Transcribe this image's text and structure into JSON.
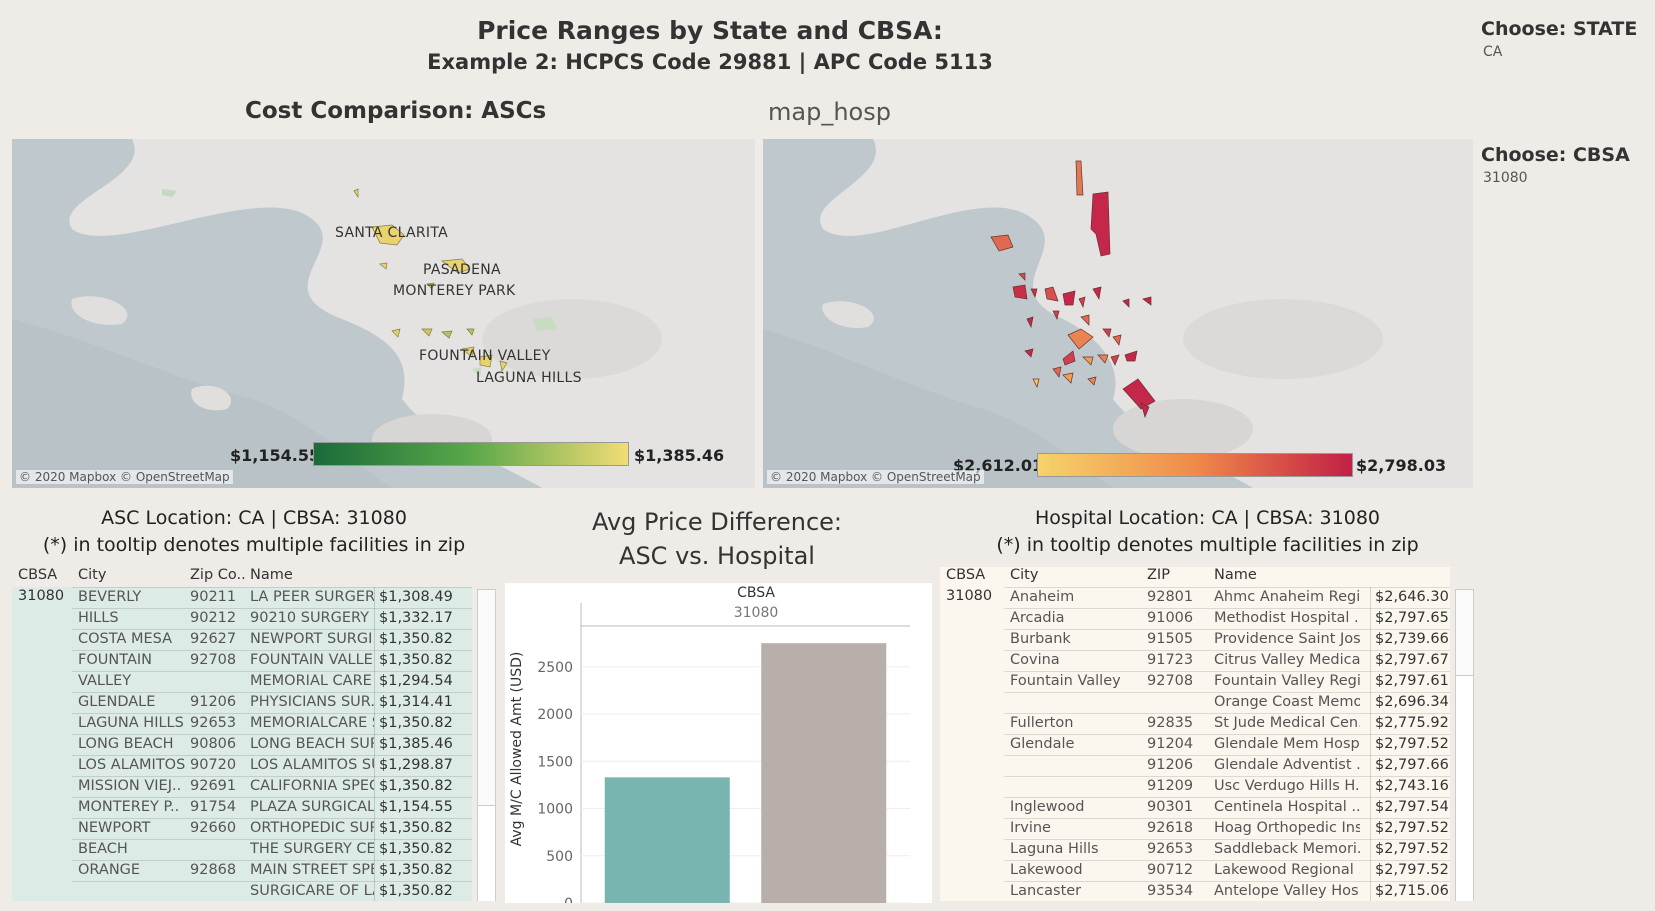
{
  "header": {
    "title": "Price Ranges by State and CBSA:",
    "subtitle": "Example 2: HCPCS Code 29881 | APC Code 5113"
  },
  "filters": {
    "state_label": "Choose:  STATE",
    "state_value": "CA",
    "cbsa_label": "Choose: CBSA",
    "cbsa_value": "31080"
  },
  "asc_map": {
    "title": "Cost Comparison:  ASCs",
    "labels": [
      "SANTA CLARITA",
      "PASADENA",
      "MONTEREY PARK",
      "FOUNTAIN VALLEY",
      "LAGUNA HILLS"
    ],
    "attribution": "© 2020 Mapbox © OpenStreetMap",
    "legend_min": "$1,154.55",
    "legend_max": "$1,385.46",
    "colors": [
      "#1a6b3a",
      "#5aa84a",
      "#f2dc75"
    ]
  },
  "hosp_map": {
    "title": "map_hosp",
    "attribution": "© 2020 Mapbox © OpenStreetMap",
    "legend_min": "$2,612.01",
    "legend_max": "$2,798.03",
    "colors": [
      "#f5d36a",
      "#f08a4a",
      "#c21f45"
    ]
  },
  "asc_table": {
    "title_line1": "ASC Location: CA | CBSA: 31080",
    "title_line2": "(*) in tooltip denotes multiple facilities in zip",
    "headers": [
      "CBSA",
      "City",
      "Zip Co..",
      "Name"
    ],
    "cbsa": "31080",
    "rows": [
      {
        "city": "BEVERLY",
        "zip": "90211",
        "name": "LA PEER SURGERY..",
        "price": "$1,308.49"
      },
      {
        "city": "HILLS",
        "zip": "90212",
        "name": "90210 SURGERY ..",
        "price": "$1,332.17"
      },
      {
        "city": "COSTA MESA",
        "zip": "92627",
        "name": "NEWPORT SURGI..",
        "price": "$1,350.82"
      },
      {
        "city": "FOUNTAIN",
        "zip": "92708",
        "name": "FOUNTAIN VALLE..",
        "price": "$1,350.82"
      },
      {
        "city": "VALLEY",
        "zip": "",
        "name": "MEMORIAL CARE ..",
        "price": "$1,294.54"
      },
      {
        "city": "GLENDALE",
        "zip": "91206",
        "name": "PHYSICIANS SUR..",
        "price": "$1,314.41"
      },
      {
        "city": "LAGUNA HILLS",
        "zip": "92653",
        "name": "MEMORIALCARE S..",
        "price": "$1,350.82"
      },
      {
        "city": "LONG BEACH",
        "zip": "90806",
        "name": "LONG BEACH SUR..",
        "price": "$1,385.46"
      },
      {
        "city": "LOS ALAMITOS",
        "zip": "90720",
        "name": "LOS ALAMITOS SU..",
        "price": "$1,298.87"
      },
      {
        "city": "MISSION VIEJ..",
        "zip": "92691",
        "name": "CALIFORNIA SPEC..",
        "price": "$1,350.82"
      },
      {
        "city": "MONTEREY P..",
        "zip": "91754",
        "name": "PLAZA SURGICAL ..",
        "price": "$1,154.55"
      },
      {
        "city": "NEWPORT",
        "zip": "92660",
        "name": "ORTHOPEDIC SUR..",
        "price": "$1,350.82"
      },
      {
        "city": "BEACH",
        "zip": "",
        "name": "THE SURGERY CE..",
        "price": "$1,350.82"
      },
      {
        "city": "ORANGE",
        "zip": "92868",
        "name": "MAIN STREET SPE..",
        "price": "$1,350.82"
      },
      {
        "city": "",
        "zip": "",
        "name": "SURGICARE OF LA..",
        "price": "$1,350.82"
      }
    ]
  },
  "hosp_table": {
    "title_line1": "Hospital Location: CA | CBSA: 31080",
    "title_line2": "(*) in tooltip denotes multiple facilities in zip",
    "headers": [
      "CBSA",
      "City",
      "ZIP",
      "Name"
    ],
    "cbsa": "31080",
    "rows": [
      {
        "city": "Anaheim",
        "zip": "92801",
        "name": "Ahmc Anaheim Regi..",
        "price": "$2,646.30"
      },
      {
        "city": "Arcadia",
        "zip": "91006",
        "name": "Methodist Hospital ..",
        "price": "$2,797.65"
      },
      {
        "city": "Burbank",
        "zip": "91505",
        "name": "Providence Saint Jos..",
        "price": "$2,739.66"
      },
      {
        "city": "Covina",
        "zip": "91723",
        "name": "Citrus Valley Medica..",
        "price": "$2,797.67"
      },
      {
        "city": "Fountain Valley",
        "zip": "92708",
        "name": "Fountain Valley Regi..",
        "price": "$2,797.61"
      },
      {
        "city": "",
        "zip": "",
        "name": "Orange Coast Memo..",
        "price": "$2,696.34"
      },
      {
        "city": "Fullerton",
        "zip": "92835",
        "name": "St Jude Medical Cen..",
        "price": "$2,775.92"
      },
      {
        "city": "Glendale",
        "zip": "91204",
        "name": "Glendale Mem Hospi..",
        "price": "$2,797.52"
      },
      {
        "city": "",
        "zip": "91206",
        "name": "Glendale Adventist ..",
        "price": "$2,797.66"
      },
      {
        "city": "",
        "zip": "91209",
        "name": "Usc Verdugo Hills H..",
        "price": "$2,743.16"
      },
      {
        "city": "Inglewood",
        "zip": "90301",
        "name": "Centinela Hospital ..",
        "price": "$2,797.54"
      },
      {
        "city": "Irvine",
        "zip": "92618",
        "name": "Hoag Orthopedic Ins..",
        "price": "$2,797.52"
      },
      {
        "city": "Laguna Hills",
        "zip": "92653",
        "name": "Saddleback Memori..",
        "price": "$2,797.52"
      },
      {
        "city": "Lakewood",
        "zip": "90712",
        "name": "Lakewood Regional ..",
        "price": "$2,797.52"
      },
      {
        "city": "Lancaster",
        "zip": "93534",
        "name": "Antelope Valley Hos..",
        "price": "$2,715.06"
      }
    ]
  },
  "chart_data": {
    "type": "bar",
    "title": "Avg Price Difference:\nASC vs. Hospital",
    "title_line1": "Avg Price Difference:",
    "title_line2": "ASC vs. Hospital",
    "column_header": "CBSA",
    "column_value": "31080",
    "ylabel": "Avg M/C Allowed Amt (USD)",
    "ylim": [
      0,
      2900
    ],
    "yticks": [
      0,
      500,
      1000,
      1500,
      2000,
      2500
    ],
    "series": [
      {
        "values": [
          1330,
          2750
        ]
      }
    ],
    "bar_colors": [
      "#78b5b0",
      "#b8aeaa"
    ],
    "grid": true
  }
}
